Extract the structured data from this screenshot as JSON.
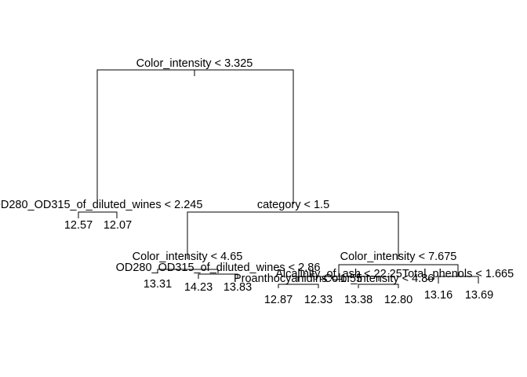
{
  "tree": {
    "root": {
      "label": "Color_intensity < 3.325"
    },
    "node_left": {
      "label": "OD280_OD315_of_diluted_wines < 2.245"
    },
    "node_right": {
      "label": "category < 1.5"
    },
    "node_rl": {
      "label": "Color_intensity < 4.65"
    },
    "node_rr": {
      "label": "Color_intensity < 7.675"
    },
    "node_rlr": {
      "label": "OD280_OD315_of_diluted_wines < 2.86"
    },
    "node_rrl": {
      "label": "Alcalinity_of_ash < 22.25"
    },
    "node_rrr": {
      "label": "Total_phenols < 1.665"
    },
    "node_rrll": {
      "label": "Proanthocyanidins < 1.55"
    },
    "node_rrlr": {
      "label": "Color_intensity < 4.86"
    },
    "leaves": {
      "l1": "12.57",
      "l2": "12.07",
      "l3": "13.31",
      "l4": "14.23",
      "l5": "13.83",
      "l6": "12.87",
      "l7": "12.33",
      "l8": "13.38",
      "l9": "12.80",
      "l10": "13.16",
      "l11": "13.69"
    }
  }
}
